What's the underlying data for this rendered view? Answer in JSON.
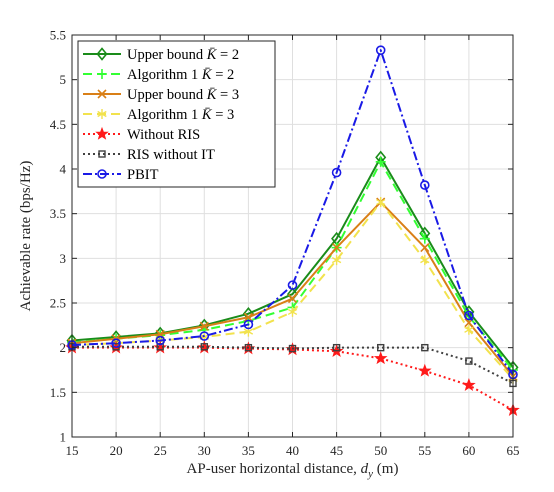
{
  "chart_data": {
    "type": "line",
    "xlabel": "AP-user horizontal distance, d_y (m)",
    "ylabel": "Achievable rate (bps/Hz)",
    "x": [
      15,
      20,
      25,
      30,
      35,
      40,
      45,
      50,
      55,
      60,
      65
    ],
    "xlim": [
      15,
      65
    ],
    "ylim": [
      1,
      5.5
    ],
    "xticks": [
      15,
      20,
      25,
      30,
      35,
      40,
      45,
      50,
      55,
      60,
      65
    ],
    "yticks": [
      1,
      1.5,
      2,
      2.5,
      3,
      3.5,
      4,
      4.5,
      5,
      5.5
    ],
    "grid": true,
    "legend_position": "top-left",
    "series": [
      {
        "name": "Upper bound K̄ = 2",
        "color": "#1a8c1a",
        "line_style": "solid",
        "marker": "diamond",
        "values": [
          2.08,
          2.12,
          2.16,
          2.25,
          2.38,
          2.6,
          3.22,
          4.13,
          3.28,
          2.4,
          1.78
        ]
      },
      {
        "name": "Algorithm 1 K̄ = 2",
        "color": "#33ff33",
        "line_style": "dashed",
        "marker": "plus",
        "values": [
          2.06,
          2.1,
          2.14,
          2.2,
          2.3,
          2.45,
          3.12,
          4.08,
          3.22,
          2.35,
          1.75
        ]
      },
      {
        "name": "Upper bound K̄ = 3",
        "color": "#d97f17",
        "line_style": "solid",
        "marker": "x",
        "values": [
          2.05,
          2.1,
          2.15,
          2.24,
          2.34,
          2.55,
          3.12,
          3.63,
          3.12,
          2.28,
          1.68
        ]
      },
      {
        "name": "Algorithm 1 K̄ = 3",
        "color": "#f2e24d",
        "line_style": "dashed",
        "marker": "star",
        "values": [
          2.03,
          2.05,
          2.08,
          2.12,
          2.18,
          2.4,
          2.98,
          3.63,
          2.98,
          2.2,
          1.65
        ]
      },
      {
        "name": "Without RIS",
        "color": "#ff1a1a",
        "line_style": "dotted",
        "marker": "pentagram",
        "values": [
          2.0,
          2.0,
          2.0,
          2.0,
          1.99,
          1.98,
          1.96,
          1.88,
          1.74,
          1.58,
          1.3
        ]
      },
      {
        "name": "RIS without IT",
        "color": "#404040",
        "line_style": "dotted",
        "marker": "square",
        "values": [
          2.01,
          2.01,
          2.01,
          2.01,
          2.0,
          1.99,
          2.0,
          2.0,
          2.0,
          1.85,
          1.6
        ]
      },
      {
        "name": "PBIT",
        "color": "#1a1ae6",
        "line_style": "dashdot",
        "marker": "circle",
        "values": [
          2.03,
          2.05,
          2.08,
          2.13,
          2.26,
          2.7,
          3.96,
          5.33,
          3.82,
          2.36,
          1.7
        ]
      }
    ]
  }
}
